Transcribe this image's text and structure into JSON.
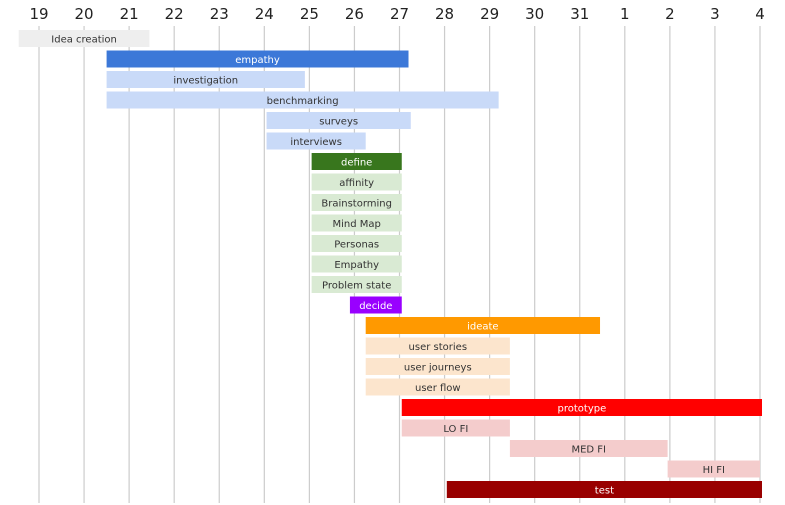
{
  "chart_data": {
    "type": "gantt",
    "title": "",
    "xlabel": "",
    "ylabel": "",
    "grid": true,
    "legend": "none",
    "x_ticks": [
      "19",
      "20",
      "21",
      "22",
      "23",
      "24",
      "25",
      "26",
      "27",
      "28",
      "29",
      "30",
      "31",
      "1",
      "2",
      "3",
      "4"
    ],
    "x_range": [
      0,
      16
    ],
    "tasks": [
      {
        "name": "Idea creation",
        "start": -0.45,
        "end": 2.45,
        "color": "#eeeeee",
        "text_color": "#333333"
      },
      {
        "name": "empathy",
        "start": 1.5,
        "end": 8.2,
        "color": "#3c78d8",
        "text_color": "#ffffff"
      },
      {
        "name": "investigation",
        "start": 1.5,
        "end": 5.9,
        "color": "#c9daf8",
        "text_color": "#333333"
      },
      {
        "name": "benchmarking",
        "start": 1.5,
        "end": 10.2,
        "color": "#c9daf8",
        "text_color": "#333333"
      },
      {
        "name": "surveys",
        "start": 5.05,
        "end": 8.25,
        "color": "#c9daf8",
        "text_color": "#333333"
      },
      {
        "name": "interviews",
        "start": 5.05,
        "end": 7.25,
        "color": "#c9daf8",
        "text_color": "#333333"
      },
      {
        "name": "define",
        "start": 6.05,
        "end": 8.05,
        "color": "#38761d",
        "text_color": "#ffffff"
      },
      {
        "name": "affinity",
        "start": 6.05,
        "end": 8.05,
        "color": "#d9ead3",
        "text_color": "#333333"
      },
      {
        "name": "Brainstorming",
        "start": 6.05,
        "end": 8.05,
        "color": "#d9ead3",
        "text_color": "#333333"
      },
      {
        "name": "Mind Map",
        "start": 6.05,
        "end": 8.05,
        "color": "#d9ead3",
        "text_color": "#333333"
      },
      {
        "name": "Personas",
        "start": 6.05,
        "end": 8.05,
        "color": "#d9ead3",
        "text_color": "#333333"
      },
      {
        "name": "Empathy",
        "start": 6.05,
        "end": 8.05,
        "color": "#d9ead3",
        "text_color": "#333333"
      },
      {
        "name": "Problem state",
        "start": 6.05,
        "end": 8.05,
        "color": "#d9ead3",
        "text_color": "#333333"
      },
      {
        "name": "decide",
        "start": 6.9,
        "end": 8.05,
        "color": "#9900ff",
        "text_color": "#ffffff"
      },
      {
        "name": "ideate",
        "start": 7.25,
        "end": 12.45,
        "color": "#ff9900",
        "text_color": "#ffffff"
      },
      {
        "name": "user stories",
        "start": 7.25,
        "end": 10.45,
        "color": "#fce5cd",
        "text_color": "#333333"
      },
      {
        "name": "user journeys",
        "start": 7.25,
        "end": 10.45,
        "color": "#fce5cd",
        "text_color": "#333333"
      },
      {
        "name": "user flow",
        "start": 7.25,
        "end": 10.45,
        "color": "#fce5cd",
        "text_color": "#333333"
      },
      {
        "name": "prototype",
        "start": 8.05,
        "end": 16.05,
        "color": "#ff0000",
        "text_color": "#ffffff"
      },
      {
        "name": "LO FI",
        "start": 8.05,
        "end": 10.45,
        "color": "#f4cccc",
        "text_color": "#333333"
      },
      {
        "name": "MED FI",
        "start": 10.45,
        "end": 13.95,
        "color": "#f4cccc",
        "text_color": "#333333"
      },
      {
        "name": "HI FI",
        "start": 13.95,
        "end": 16.0,
        "color": "#f4cccc",
        "text_color": "#333333"
      },
      {
        "name": "test",
        "start": 9.05,
        "end": 16.05,
        "color": "#990000",
        "text_color": "#ffffff"
      }
    ]
  }
}
